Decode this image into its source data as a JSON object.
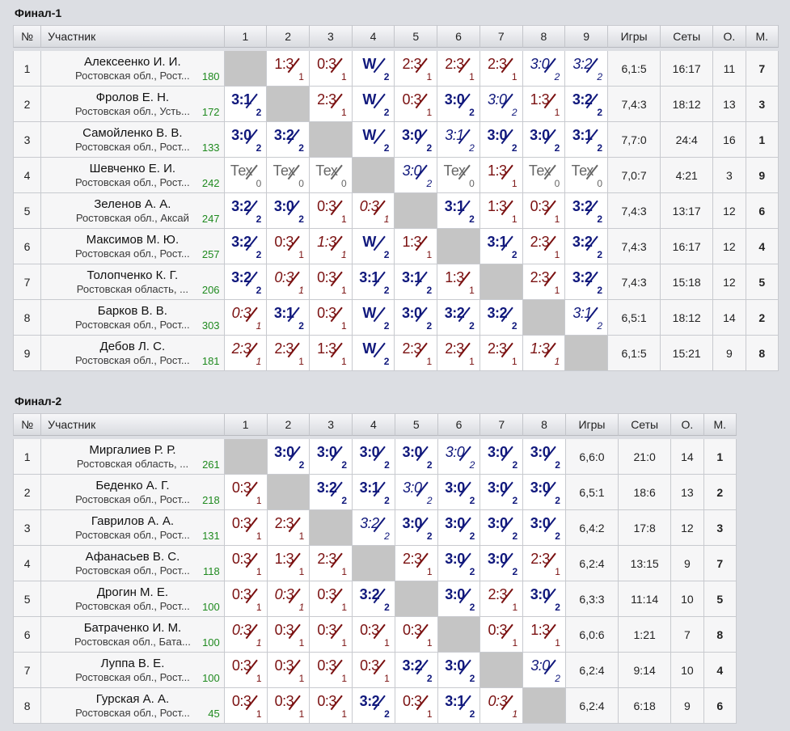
{
  "headers": {
    "num": "№",
    "name": "Участник",
    "games": "Игры",
    "sets": "Сеты",
    "points": "О.",
    "place": "М."
  },
  "groups": [
    {
      "title": "Финал-1",
      "cols": [
        "1",
        "2",
        "3",
        "4",
        "5",
        "6",
        "7",
        "8",
        "9"
      ],
      "rows": [
        {
          "num": "1",
          "name": "Алексеенко И. И.",
          "region": "Ростовская обл., Рост...",
          "rating": "180",
          "cells": [
            null,
            {
              "s": "1:3",
              "p": "1",
              "t": "loss"
            },
            {
              "s": "0:3",
              "p": "1",
              "t": "loss"
            },
            {
              "s": "W",
              "p": "2",
              "t": "win"
            },
            {
              "s": "2:3",
              "p": "1",
              "t": "loss"
            },
            {
              "s": "2:3",
              "p": "1",
              "t": "loss"
            },
            {
              "s": "2:3",
              "p": "1",
              "t": "loss"
            },
            {
              "s": "3:0",
              "p": "2",
              "t": "win",
              "i": true
            },
            {
              "s": "3:2",
              "p": "2",
              "t": "win",
              "i": true
            }
          ],
          "games": "6,1:5",
          "sets": "16:17",
          "points": "11",
          "place": "7"
        },
        {
          "num": "2",
          "name": "Фролов Е. Н.",
          "region": "Ростовская обл., Усть...",
          "rating": "172",
          "cells": [
            {
              "s": "3:1",
              "p": "2",
              "t": "win"
            },
            null,
            {
              "s": "2:3",
              "p": "1",
              "t": "loss"
            },
            {
              "s": "W",
              "p": "2",
              "t": "win"
            },
            {
              "s": "0:3",
              "p": "1",
              "t": "loss"
            },
            {
              "s": "3:0",
              "p": "2",
              "t": "win"
            },
            {
              "s": "3:0",
              "p": "2",
              "t": "win",
              "i": true
            },
            {
              "s": "1:3",
              "p": "1",
              "t": "loss"
            },
            {
              "s": "3:2",
              "p": "2",
              "t": "win"
            }
          ],
          "games": "7,4:3",
          "sets": "18:12",
          "points": "13",
          "place": "3"
        },
        {
          "num": "3",
          "name": "Самойленко В. В.",
          "region": "Ростовская обл., Рост...",
          "rating": "133",
          "cells": [
            {
              "s": "3:0",
              "p": "2",
              "t": "win"
            },
            {
              "s": "3:2",
              "p": "2",
              "t": "win"
            },
            null,
            {
              "s": "W",
              "p": "2",
              "t": "win"
            },
            {
              "s": "3:0",
              "p": "2",
              "t": "win"
            },
            {
              "s": "3:1",
              "p": "2",
              "t": "win",
              "i": true
            },
            {
              "s": "3:0",
              "p": "2",
              "t": "win"
            },
            {
              "s": "3:0",
              "p": "2",
              "t": "win"
            },
            {
              "s": "3:1",
              "p": "2",
              "t": "win"
            }
          ],
          "games": "7,7:0",
          "sets": "24:4",
          "points": "16",
          "place": "1"
        },
        {
          "num": "4",
          "name": "Шевченко Е. И.",
          "region": "Ростовская обл., Рост...",
          "rating": "242",
          "cells": [
            {
              "s": "Тех",
              "p": "0",
              "t": "tech"
            },
            {
              "s": "Тех",
              "p": "0",
              "t": "tech"
            },
            {
              "s": "Тех",
              "p": "0",
              "t": "tech"
            },
            null,
            {
              "s": "3:0",
              "p": "2",
              "t": "win",
              "i": true
            },
            {
              "s": "Тех",
              "p": "0",
              "t": "tech"
            },
            {
              "s": "1:3",
              "p": "1",
              "t": "loss"
            },
            {
              "s": "Тех",
              "p": "0",
              "t": "tech"
            },
            {
              "s": "Тех",
              "p": "0",
              "t": "tech"
            }
          ],
          "games": "7,0:7",
          "sets": "4:21",
          "points": "3",
          "place": "9"
        },
        {
          "num": "5",
          "name": "Зеленов А. А.",
          "region": "Ростовская обл., Аксай",
          "rating": "247",
          "cells": [
            {
              "s": "3:2",
              "p": "2",
              "t": "win"
            },
            {
              "s": "3:0",
              "p": "2",
              "t": "win"
            },
            {
              "s": "0:3",
              "p": "1",
              "t": "loss"
            },
            {
              "s": "0:3",
              "p": "1",
              "t": "loss",
              "i": true
            },
            null,
            {
              "s": "3:1",
              "p": "2",
              "t": "win"
            },
            {
              "s": "1:3",
              "p": "1",
              "t": "loss"
            },
            {
              "s": "0:3",
              "p": "1",
              "t": "loss"
            },
            {
              "s": "3:2",
              "p": "2",
              "t": "win"
            }
          ],
          "games": "7,4:3",
          "sets": "13:17",
          "points": "12",
          "place": "6"
        },
        {
          "num": "6",
          "name": "Максимов М. Ю.",
          "region": "Ростовская обл., Рост...",
          "rating": "257",
          "cells": [
            {
              "s": "3:2",
              "p": "2",
              "t": "win"
            },
            {
              "s": "0:3",
              "p": "1",
              "t": "loss"
            },
            {
              "s": "1:3",
              "p": "1",
              "t": "loss",
              "i": true
            },
            {
              "s": "W",
              "p": "2",
              "t": "win"
            },
            {
              "s": "1:3",
              "p": "1",
              "t": "loss"
            },
            null,
            {
              "s": "3:1",
              "p": "2",
              "t": "win"
            },
            {
              "s": "2:3",
              "p": "1",
              "t": "loss"
            },
            {
              "s": "3:2",
              "p": "2",
              "t": "win"
            }
          ],
          "games": "7,4:3",
          "sets": "16:17",
          "points": "12",
          "place": "4"
        },
        {
          "num": "7",
          "name": "Толопченко К. Г.",
          "region": "Ростовская область, ...",
          "rating": "206",
          "cells": [
            {
              "s": "3:2",
              "p": "2",
              "t": "win"
            },
            {
              "s": "0:3",
              "p": "1",
              "t": "loss",
              "i": true
            },
            {
              "s": "0:3",
              "p": "1",
              "t": "loss"
            },
            {
              "s": "3:1",
              "p": "2",
              "t": "win"
            },
            {
              "s": "3:1",
              "p": "2",
              "t": "win"
            },
            {
              "s": "1:3",
              "p": "1",
              "t": "loss"
            },
            null,
            {
              "s": "2:3",
              "p": "1",
              "t": "loss"
            },
            {
              "s": "3:2",
              "p": "2",
              "t": "win"
            }
          ],
          "games": "7,4:3",
          "sets": "15:18",
          "points": "12",
          "place": "5"
        },
        {
          "num": "8",
          "name": "Барков В. В.",
          "region": "Ростовская обл., Рост...",
          "rating": "303",
          "cells": [
            {
              "s": "0:3",
              "p": "1",
              "t": "loss",
              "i": true
            },
            {
              "s": "3:1",
              "p": "2",
              "t": "win"
            },
            {
              "s": "0:3",
              "p": "1",
              "t": "loss"
            },
            {
              "s": "W",
              "p": "2",
              "t": "win"
            },
            {
              "s": "3:0",
              "p": "2",
              "t": "win"
            },
            {
              "s": "3:2",
              "p": "2",
              "t": "win"
            },
            {
              "s": "3:2",
              "p": "2",
              "t": "win"
            },
            null,
            {
              "s": "3:1",
              "p": "2",
              "t": "win",
              "i": true
            }
          ],
          "games": "6,5:1",
          "sets": "18:12",
          "points": "14",
          "place": "2"
        },
        {
          "num": "9",
          "name": "Дебов Л. С.",
          "region": "Ростовская обл., Рост...",
          "rating": "181",
          "cells": [
            {
              "s": "2:3",
              "p": "1",
              "t": "loss",
              "i": true
            },
            {
              "s": "2:3",
              "p": "1",
              "t": "loss"
            },
            {
              "s": "1:3",
              "p": "1",
              "t": "loss"
            },
            {
              "s": "W",
              "p": "2",
              "t": "win"
            },
            {
              "s": "2:3",
              "p": "1",
              "t": "loss"
            },
            {
              "s": "2:3",
              "p": "1",
              "t": "loss"
            },
            {
              "s": "2:3",
              "p": "1",
              "t": "loss"
            },
            {
              "s": "1:3",
              "p": "1",
              "t": "loss",
              "i": true
            },
            null
          ],
          "games": "6,1:5",
          "sets": "15:21",
          "points": "9",
          "place": "8"
        }
      ]
    },
    {
      "title": "Финал-2",
      "cols": [
        "1",
        "2",
        "3",
        "4",
        "5",
        "6",
        "7",
        "8"
      ],
      "rows": [
        {
          "num": "1",
          "name": "Миргалиев Р. Р.",
          "region": "Ростовская область, ...",
          "rating": "261",
          "cells": [
            null,
            {
              "s": "3:0",
              "p": "2",
              "t": "win"
            },
            {
              "s": "3:0",
              "p": "2",
              "t": "win"
            },
            {
              "s": "3:0",
              "p": "2",
              "t": "win"
            },
            {
              "s": "3:0",
              "p": "2",
              "t": "win"
            },
            {
              "s": "3:0",
              "p": "2",
              "t": "win",
              "i": true
            },
            {
              "s": "3:0",
              "p": "2",
              "t": "win"
            },
            {
              "s": "3:0",
              "p": "2",
              "t": "win"
            }
          ],
          "games": "6,6:0",
          "sets": "21:0",
          "points": "14",
          "place": "1"
        },
        {
          "num": "2",
          "name": "Беденко А. Г.",
          "region": "Ростовская обл., Рост...",
          "rating": "218",
          "cells": [
            {
              "s": "0:3",
              "p": "1",
              "t": "loss"
            },
            null,
            {
              "s": "3:2",
              "p": "2",
              "t": "win"
            },
            {
              "s": "3:1",
              "p": "2",
              "t": "win"
            },
            {
              "s": "3:0",
              "p": "2",
              "t": "win",
              "i": true
            },
            {
              "s": "3:0",
              "p": "2",
              "t": "win"
            },
            {
              "s": "3:0",
              "p": "2",
              "t": "win"
            },
            {
              "s": "3:0",
              "p": "2",
              "t": "win"
            }
          ],
          "games": "6,5:1",
          "sets": "18:6",
          "points": "13",
          "place": "2"
        },
        {
          "num": "3",
          "name": "Гаврилов А. А.",
          "region": "Ростовская обл., Рост...",
          "rating": "131",
          "cells": [
            {
              "s": "0:3",
              "p": "1",
              "t": "loss"
            },
            {
              "s": "2:3",
              "p": "1",
              "t": "loss"
            },
            null,
            {
              "s": "3:2",
              "p": "2",
              "t": "win",
              "i": true
            },
            {
              "s": "3:0",
              "p": "2",
              "t": "win"
            },
            {
              "s": "3:0",
              "p": "2",
              "t": "win"
            },
            {
              "s": "3:0",
              "p": "2",
              "t": "win"
            },
            {
              "s": "3:0",
              "p": "2",
              "t": "win"
            }
          ],
          "games": "6,4:2",
          "sets": "17:8",
          "points": "12",
          "place": "3"
        },
        {
          "num": "4",
          "name": "Афанасьев В. С.",
          "region": "Ростовская обл., Рост...",
          "rating": "118",
          "cells": [
            {
              "s": "0:3",
              "p": "1",
              "t": "loss"
            },
            {
              "s": "1:3",
              "p": "1",
              "t": "loss"
            },
            {
              "s": "2:3",
              "p": "1",
              "t": "loss"
            },
            null,
            {
              "s": "2:3",
              "p": "1",
              "t": "loss"
            },
            {
              "s": "3:0",
              "p": "2",
              "t": "win"
            },
            {
              "s": "3:0",
              "p": "2",
              "t": "win"
            },
            {
              "s": "2:3",
              "p": "1",
              "t": "loss"
            }
          ],
          "games": "6,2:4",
          "sets": "13:15",
          "points": "9",
          "place": "7"
        },
        {
          "num": "5",
          "name": "Дрогин М. Е.",
          "region": "Ростовская обл., Рост...",
          "rating": "100",
          "cells": [
            {
              "s": "0:3",
              "p": "1",
              "t": "loss"
            },
            {
              "s": "0:3",
              "p": "1",
              "t": "loss",
              "i": true
            },
            {
              "s": "0:3",
              "p": "1",
              "t": "loss"
            },
            {
              "s": "3:2",
              "p": "2",
              "t": "win"
            },
            null,
            {
              "s": "3:0",
              "p": "2",
              "t": "win"
            },
            {
              "s": "2:3",
              "p": "1",
              "t": "loss"
            },
            {
              "s": "3:0",
              "p": "2",
              "t": "win"
            }
          ],
          "games": "6,3:3",
          "sets": "11:14",
          "points": "10",
          "place": "5"
        },
        {
          "num": "6",
          "name": "Батраченко И. М.",
          "region": "Ростовская обл., Бата...",
          "rating": "100",
          "cells": [
            {
              "s": "0:3",
              "p": "1",
              "t": "loss",
              "i": true
            },
            {
              "s": "0:3",
              "p": "1",
              "t": "loss"
            },
            {
              "s": "0:3",
              "p": "1",
              "t": "loss"
            },
            {
              "s": "0:3",
              "p": "1",
              "t": "loss"
            },
            {
              "s": "0:3",
              "p": "1",
              "t": "loss"
            },
            null,
            {
              "s": "0:3",
              "p": "1",
              "t": "loss"
            },
            {
              "s": "1:3",
              "p": "1",
              "t": "loss"
            }
          ],
          "games": "6,0:6",
          "sets": "1:21",
          "points": "7",
          "place": "8"
        },
        {
          "num": "7",
          "name": "Луппа В. Е.",
          "region": "Ростовская обл., Рост...",
          "rating": "100",
          "cells": [
            {
              "s": "0:3",
              "p": "1",
              "t": "loss"
            },
            {
              "s": "0:3",
              "p": "1",
              "t": "loss"
            },
            {
              "s": "0:3",
              "p": "1",
              "t": "loss"
            },
            {
              "s": "0:3",
              "p": "1",
              "t": "loss"
            },
            {
              "s": "3:2",
              "p": "2",
              "t": "win"
            },
            {
              "s": "3:0",
              "p": "2",
              "t": "win"
            },
            null,
            {
              "s": "3:0",
              "p": "2",
              "t": "win",
              "i": true
            }
          ],
          "games": "6,2:4",
          "sets": "9:14",
          "points": "10",
          "place": "4"
        },
        {
          "num": "8",
          "name": "Гурская А. А.",
          "region": "Ростовская обл., Рост...",
          "rating": "45",
          "cells": [
            {
              "s": "0:3",
              "p": "1",
              "t": "loss"
            },
            {
              "s": "0:3",
              "p": "1",
              "t": "loss"
            },
            {
              "s": "0:3",
              "p": "1",
              "t": "loss"
            },
            {
              "s": "3:2",
              "p": "2",
              "t": "win"
            },
            {
              "s": "0:3",
              "p": "1",
              "t": "loss"
            },
            {
              "s": "3:1",
              "p": "2",
              "t": "win"
            },
            {
              "s": "0:3",
              "p": "1",
              "t": "loss",
              "i": true
            },
            null
          ],
          "games": "6,2:4",
          "sets": "6:18",
          "points": "9",
          "place": "6"
        }
      ]
    }
  ]
}
